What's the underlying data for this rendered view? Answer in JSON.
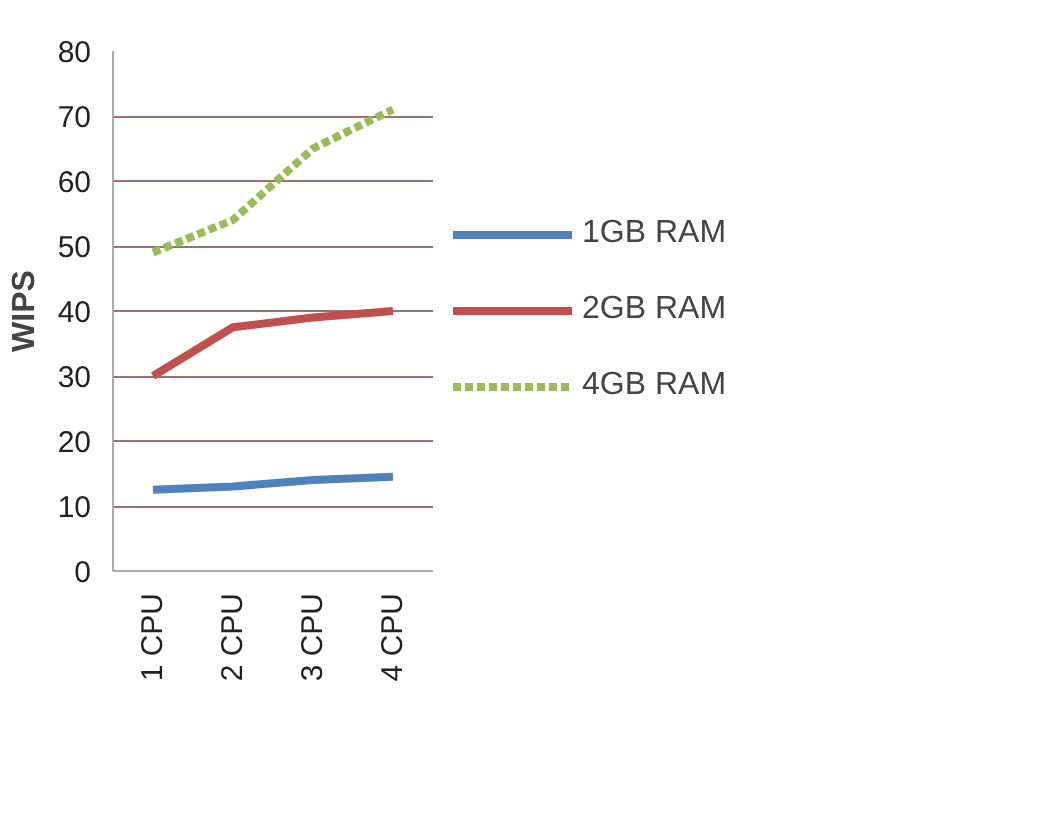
{
  "chart_data": {
    "type": "line",
    "ylabel": "WIPS",
    "categories": [
      "1 CPU",
      "2 CPU",
      "3 CPU",
      "4 CPU"
    ],
    "series": [
      {
        "name": "1GB RAM",
        "color": "#4f81bd",
        "values": [
          12.5,
          13,
          14,
          14.5
        ]
      },
      {
        "name": "2GB RAM",
        "color": "#c0504d",
        "values": [
          30,
          37.5,
          39,
          40
        ]
      },
      {
        "name": "4GB RAM",
        "color": "#9bbb59",
        "values": [
          49,
          54,
          65,
          71
        ],
        "line_style": "dashed"
      }
    ],
    "ylim": [
      0,
      80
    ],
    "yticks": [
      0,
      10,
      20,
      30,
      40,
      50,
      60,
      70,
      80
    ],
    "grid": "y",
    "legend": "right",
    "marker": "none",
    "line_style": "solid"
  }
}
